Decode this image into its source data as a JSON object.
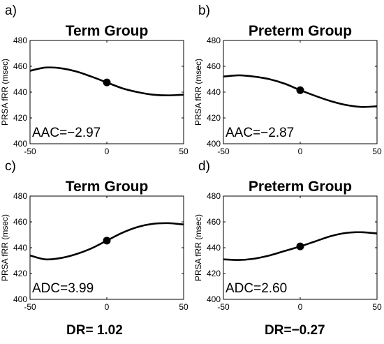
{
  "chart_data": [
    {
      "type": "line",
      "panel_label": "a)",
      "title": "Term Group",
      "ylabel": "PRSA fRR (msec)",
      "xlim": [
        -50,
        50
      ],
      "ylim": [
        400,
        480
      ],
      "xticks": [
        "-50",
        "0",
        "50"
      ],
      "yticks": [
        "400",
        "420",
        "440",
        "460",
        "480"
      ],
      "annotation": "AAC=−2.97",
      "series": [
        {
          "x": [
            -50,
            -40,
            -30,
            -20,
            -10,
            0,
            10,
            20,
            30,
            40,
            50
          ],
          "y": [
            456.5,
            459,
            458.5,
            456,
            452,
            447.5,
            443,
            440,
            438,
            437.5,
            438
          ]
        }
      ],
      "marker": {
        "x": 0,
        "y": 447.5
      }
    },
    {
      "type": "line",
      "panel_label": "b)",
      "title": "Preterm Group",
      "ylabel": "PRSA fRR (msec)",
      "xlim": [
        -50,
        50
      ],
      "ylim": [
        400,
        480
      ],
      "xticks": [
        "-50",
        "0",
        "50"
      ],
      "yticks": [
        "400",
        "420",
        "440",
        "460",
        "480"
      ],
      "annotation": "AAC=−2.87",
      "series": [
        {
          "x": [
            -50,
            -40,
            -30,
            -20,
            -10,
            0,
            10,
            20,
            30,
            40,
            50
          ],
          "y": [
            452,
            453,
            452,
            450,
            446.5,
            441.5,
            437,
            433,
            430,
            428.5,
            429
          ]
        }
      ],
      "marker": {
        "x": 0,
        "y": 441.5
      }
    },
    {
      "type": "line",
      "panel_label": "c)",
      "title": "Term Group",
      "ylabel": "PRSA fRR (msec)",
      "xlim": [
        -50,
        50
      ],
      "ylim": [
        400,
        480
      ],
      "xticks": [
        "-50",
        "0",
        "50"
      ],
      "yticks": [
        "400",
        "420",
        "440",
        "460",
        "480"
      ],
      "annotation": "ADC=3.99",
      "series": [
        {
          "x": [
            -50,
            -40,
            -30,
            -20,
            -10,
            0,
            10,
            20,
            30,
            40,
            50
          ],
          "y": [
            434,
            431,
            432,
            435,
            439.5,
            445.5,
            451.5,
            456,
            458.5,
            459,
            458
          ]
        }
      ],
      "marker": {
        "x": 0,
        "y": 445.5
      }
    },
    {
      "type": "line",
      "panel_label": "d)",
      "title": "Preterm Group",
      "ylabel": "PRSA fRR (msec)",
      "xlim": [
        -50,
        50
      ],
      "ylim": [
        400,
        480
      ],
      "xticks": [
        "-50",
        "0",
        "50"
      ],
      "yticks": [
        "400",
        "420",
        "440",
        "460",
        "480"
      ],
      "annotation": "ADC=2.60",
      "series": [
        {
          "x": [
            -50,
            -40,
            -30,
            -20,
            -10,
            0,
            10,
            20,
            30,
            40,
            50
          ],
          "y": [
            431,
            430.5,
            431.5,
            434,
            437.5,
            441,
            445,
            449,
            451.5,
            452,
            451
          ]
        }
      ],
      "marker": {
        "x": 0,
        "y": 441
      }
    }
  ],
  "footer": {
    "dr_left": "DR= 1.02",
    "dr_right": "DR=−0.27"
  },
  "colors": {
    "line": "#000000",
    "axis": "#000000",
    "background": "#ffffff"
  }
}
